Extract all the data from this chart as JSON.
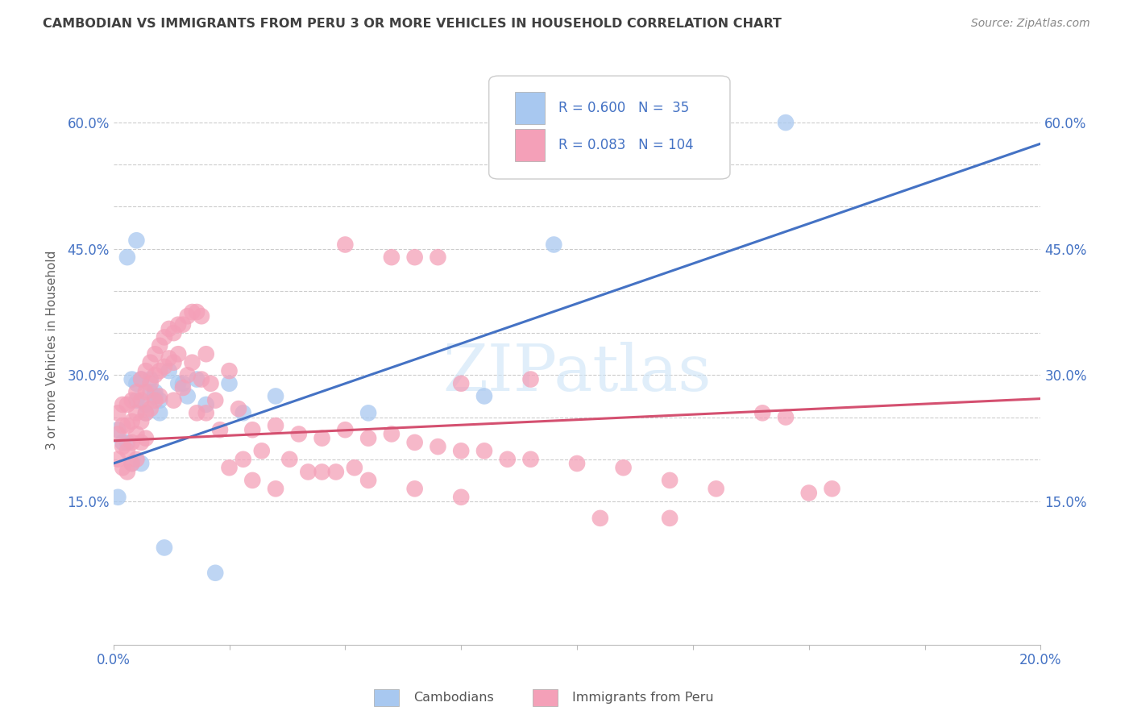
{
  "title": "CAMBODIAN VS IMMIGRANTS FROM PERU 3 OR MORE VEHICLES IN HOUSEHOLD CORRELATION CHART",
  "source": "Source: ZipAtlas.com",
  "ylabel": "3 or more Vehicles in Household",
  "cambodian_R": 0.6,
  "cambodian_N": 35,
  "peru_R": 0.083,
  "peru_N": 104,
  "cambodian_color": "#a8c8f0",
  "peru_color": "#f4a0b8",
  "cambodian_line_color": "#4472c4",
  "peru_line_color": "#d45070",
  "xlim": [
    0.0,
    0.2
  ],
  "ylim": [
    -0.02,
    0.68
  ],
  "yticks": [
    0.15,
    0.3,
    0.45,
    0.6
  ],
  "ytick_labels": [
    "15.0%",
    "30.0%",
    "45.0%",
    "60.0%"
  ],
  "yticks_minor": [
    0.2,
    0.25,
    0.35,
    0.4,
    0.5,
    0.55
  ],
  "xtick_labels_show": [
    "0.0%",
    "20.0%"
  ],
  "cam_line_x0": 0.0,
  "cam_line_y0": 0.195,
  "cam_line_x1": 0.2,
  "cam_line_y1": 0.575,
  "peru_line_x0": 0.0,
  "peru_line_y0": 0.222,
  "peru_line_x1": 0.2,
  "peru_line_y1": 0.272,
  "watermark": "ZIPatlas",
  "background_color": "#ffffff",
  "grid_color": "#cccccc",
  "tick_color": "#4472c4",
  "title_color": "#404040",
  "source_color": "#888888",
  "ylabel_color": "#606060",
  "cambodian_x": [
    0.001,
    0.001,
    0.002,
    0.003,
    0.003,
    0.004,
    0.004,
    0.005,
    0.005,
    0.005,
    0.006,
    0.006,
    0.007,
    0.007,
    0.008,
    0.008,
    0.009,
    0.009,
    0.01,
    0.01,
    0.011,
    0.012,
    0.014,
    0.015,
    0.016,
    0.018,
    0.02,
    0.022,
    0.025,
    0.028,
    0.035,
    0.055,
    0.08,
    0.095,
    0.145
  ],
  "cambodian_y": [
    0.235,
    0.155,
    0.22,
    0.44,
    0.22,
    0.295,
    0.195,
    0.29,
    0.27,
    0.46,
    0.295,
    0.195,
    0.265,
    0.255,
    0.295,
    0.28,
    0.275,
    0.28,
    0.27,
    0.255,
    0.095,
    0.305,
    0.29,
    0.29,
    0.275,
    0.295,
    0.265,
    0.065,
    0.29,
    0.255,
    0.275,
    0.255,
    0.275,
    0.455,
    0.6
  ],
  "peru_x": [
    0.001,
    0.001,
    0.001,
    0.002,
    0.002,
    0.002,
    0.002,
    0.003,
    0.003,
    0.003,
    0.003,
    0.004,
    0.004,
    0.004,
    0.004,
    0.005,
    0.005,
    0.005,
    0.005,
    0.006,
    0.006,
    0.006,
    0.006,
    0.007,
    0.007,
    0.007,
    0.007,
    0.008,
    0.008,
    0.008,
    0.009,
    0.009,
    0.009,
    0.01,
    0.01,
    0.01,
    0.011,
    0.011,
    0.012,
    0.012,
    0.013,
    0.013,
    0.013,
    0.014,
    0.014,
    0.015,
    0.015,
    0.016,
    0.016,
    0.017,
    0.017,
    0.018,
    0.018,
    0.019,
    0.019,
    0.02,
    0.02,
    0.021,
    0.022,
    0.023,
    0.025,
    0.025,
    0.027,
    0.028,
    0.03,
    0.03,
    0.032,
    0.035,
    0.035,
    0.038,
    0.04,
    0.042,
    0.045,
    0.048,
    0.05,
    0.052,
    0.055,
    0.06,
    0.065,
    0.07,
    0.075,
    0.08,
    0.085,
    0.09,
    0.1,
    0.11,
    0.12,
    0.13,
    0.14,
    0.15,
    0.155,
    0.05,
    0.06,
    0.065,
    0.07,
    0.075,
    0.09,
    0.105,
    0.12,
    0.145,
    0.045,
    0.055,
    0.065,
    0.075
  ],
  "peru_y": [
    0.255,
    0.23,
    0.2,
    0.265,
    0.24,
    0.215,
    0.19,
    0.265,
    0.24,
    0.21,
    0.185,
    0.27,
    0.245,
    0.22,
    0.195,
    0.28,
    0.255,
    0.23,
    0.2,
    0.295,
    0.27,
    0.245,
    0.22,
    0.305,
    0.28,
    0.255,
    0.225,
    0.315,
    0.29,
    0.26,
    0.325,
    0.3,
    0.27,
    0.335,
    0.305,
    0.275,
    0.345,
    0.31,
    0.355,
    0.32,
    0.35,
    0.315,
    0.27,
    0.36,
    0.325,
    0.36,
    0.285,
    0.37,
    0.3,
    0.375,
    0.315,
    0.375,
    0.255,
    0.37,
    0.295,
    0.325,
    0.255,
    0.29,
    0.27,
    0.235,
    0.305,
    0.19,
    0.26,
    0.2,
    0.235,
    0.175,
    0.21,
    0.24,
    0.165,
    0.2,
    0.23,
    0.185,
    0.225,
    0.185,
    0.235,
    0.19,
    0.225,
    0.23,
    0.22,
    0.215,
    0.21,
    0.21,
    0.2,
    0.2,
    0.195,
    0.19,
    0.175,
    0.165,
    0.255,
    0.16,
    0.165,
    0.455,
    0.44,
    0.44,
    0.44,
    0.29,
    0.295,
    0.13,
    0.13,
    0.25,
    0.185,
    0.175,
    0.165,
    0.155
  ]
}
